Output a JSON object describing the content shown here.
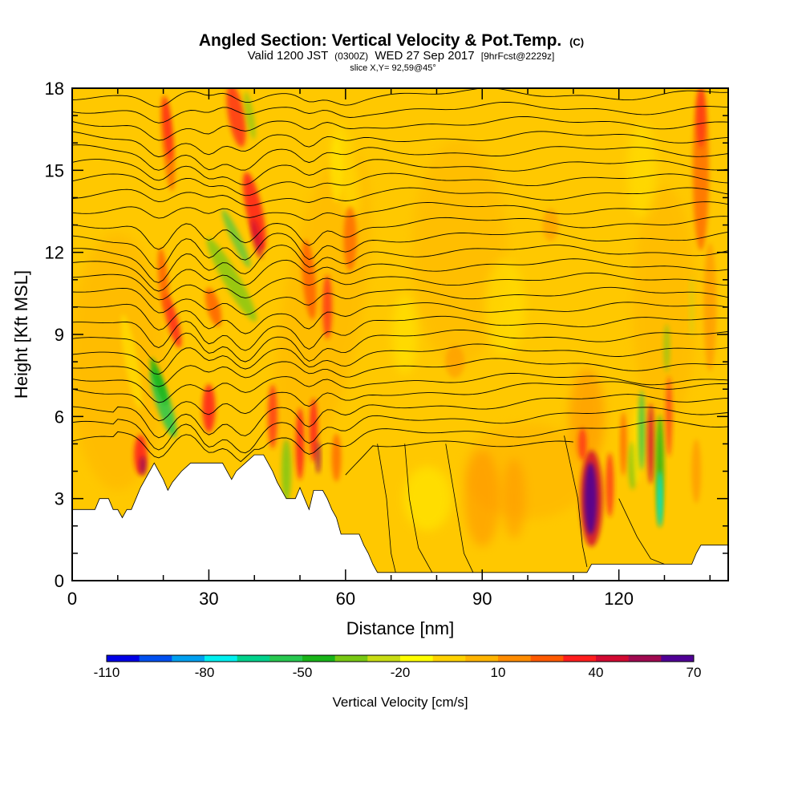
{
  "chart_data": {
    "type": "heatmap",
    "title": "Angled Section: Vertical Velocity & Pot.Temp.",
    "title_unit": "(C)",
    "subtitle": {
      "valid": "Valid 1200 JST",
      "utc": "(0300Z)",
      "date": "WED 27 Sep 2017",
      "forecast": "[9hrFcst@2229z]"
    },
    "slice": "slice X,Y= 92,59@45°",
    "xlabel": "Distance [nm]",
    "ylabel": "Height [Kft MSL]",
    "xlim": [
      0,
      144
    ],
    "ylim": [
      0,
      18
    ],
    "x_ticks": [
      0,
      30,
      60,
      90,
      120
    ],
    "y_ticks": [
      0,
      3,
      6,
      9,
      12,
      15,
      18
    ],
    "colorbar": {
      "label": "Vertical Velocity [cm/s]",
      "min": -110,
      "max": 70,
      "step": 10,
      "tick_labels": [
        "-110",
        "-80",
        "-50",
        "-20",
        "10",
        "40",
        "70"
      ],
      "colors": [
        "#0000e6",
        "#0050f0",
        "#00a0f0",
        "#00f0f0",
        "#00d28c",
        "#28c850",
        "#19b419",
        "#78c814",
        "#c8dc14",
        "#ffff00",
        "#ffd200",
        "#ffb400",
        "#ff8c00",
        "#ff5a00",
        "#ff1e1e",
        "#d20a32",
        "#a00a50",
        "#500096"
      ]
    },
    "terrain_kft": [
      [
        0,
        2.6
      ],
      [
        5,
        2.6
      ],
      [
        6,
        3.0
      ],
      [
        8,
        3.0
      ],
      [
        9,
        2.6
      ],
      [
        10,
        2.6
      ],
      [
        11,
        2.3
      ],
      [
        12,
        2.6
      ],
      [
        13,
        2.6
      ],
      [
        14,
        3.0
      ],
      [
        15,
        3.4
      ],
      [
        16,
        3.7
      ],
      [
        17,
        4.0
      ],
      [
        18,
        4.3
      ],
      [
        19,
        4.0
      ],
      [
        20,
        3.7
      ],
      [
        21,
        3.3
      ],
      [
        22,
        3.6
      ],
      [
        24,
        4.0
      ],
      [
        26,
        4.3
      ],
      [
        33,
        4.3
      ],
      [
        34,
        4.0
      ],
      [
        35,
        3.7
      ],
      [
        36,
        4.0
      ],
      [
        38,
        4.3
      ],
      [
        40,
        4.6
      ],
      [
        42,
        4.6
      ],
      [
        44,
        4.0
      ],
      [
        45,
        3.6
      ],
      [
        46,
        3.3
      ],
      [
        47,
        3.0
      ],
      [
        49,
        3.0
      ],
      [
        50,
        3.4
      ],
      [
        51,
        3.0
      ],
      [
        52,
        2.6
      ],
      [
        53,
        3.3
      ],
      [
        55,
        3.3
      ],
      [
        56,
        3.0
      ],
      [
        57,
        2.6
      ],
      [
        58,
        2.3
      ],
      [
        59,
        1.7
      ],
      [
        63,
        1.7
      ],
      [
        64,
        1.3
      ],
      [
        65,
        1.0
      ],
      [
        66,
        0.6
      ],
      [
        67,
        0.3
      ],
      [
        113,
        0.3
      ],
      [
        114,
        0.6
      ],
      [
        136,
        0.6
      ],
      [
        137,
        1.0
      ],
      [
        138,
        1.3
      ],
      [
        144,
        1.3
      ]
    ]
  }
}
